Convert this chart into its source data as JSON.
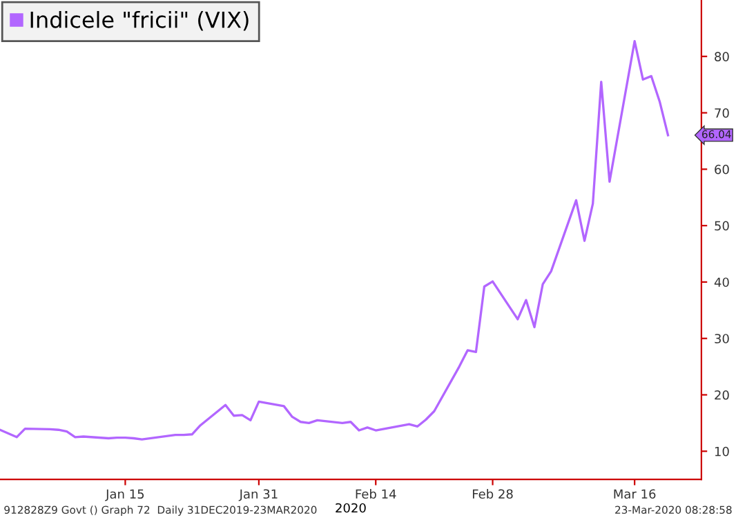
{
  "chart_data": {
    "type": "line",
    "xlabel": "2020",
    "x": [
      "2019-12-31",
      "2020-01-02",
      "2020-01-03",
      "2020-01-06",
      "2020-01-07",
      "2020-01-08",
      "2020-01-09",
      "2020-01-10",
      "2020-01-13",
      "2020-01-14",
      "2020-01-15",
      "2020-01-16",
      "2020-01-17",
      "2020-01-21",
      "2020-01-22",
      "2020-01-23",
      "2020-01-24",
      "2020-01-27",
      "2020-01-28",
      "2020-01-29",
      "2020-01-30",
      "2020-01-31",
      "2020-02-03",
      "2020-02-04",
      "2020-02-05",
      "2020-02-06",
      "2020-02-07",
      "2020-02-10",
      "2020-02-11",
      "2020-02-12",
      "2020-02-13",
      "2020-02-14",
      "2020-02-18",
      "2020-02-19",
      "2020-02-20",
      "2020-02-21",
      "2020-02-24",
      "2020-02-25",
      "2020-02-26",
      "2020-02-27",
      "2020-02-28",
      "2020-03-02",
      "2020-03-03",
      "2020-03-04",
      "2020-03-05",
      "2020-03-06",
      "2020-03-09",
      "2020-03-10",
      "2020-03-11",
      "2020-03-12",
      "2020-03-13",
      "2020-03-16",
      "2020-03-17",
      "2020-03-18",
      "2020-03-19",
      "2020-03-20"
    ],
    "series": [
      {
        "name": "Indicele \"fricii\" (VIX)",
        "color": "#b266ff",
        "values": [
          13.8,
          12.5,
          14.0,
          13.9,
          13.8,
          13.5,
          12.5,
          12.6,
          12.3,
          12.4,
          12.4,
          12.3,
          12.1,
          12.9,
          12.9,
          13.0,
          14.6,
          18.2,
          16.3,
          16.4,
          15.5,
          18.8,
          18.0,
          16.1,
          15.2,
          15.0,
          15.5,
          15.0,
          15.2,
          13.7,
          14.2,
          13.7,
          14.8,
          14.4,
          15.6,
          17.1,
          25.0,
          27.9,
          27.6,
          39.2,
          40.1,
          33.4,
          36.8,
          32.0,
          39.6,
          41.9,
          54.5,
          47.3,
          53.9,
          75.5,
          57.8,
          82.7,
          75.9,
          76.5,
          72.0,
          66.04
        ]
      }
    ],
    "xlim": [
      "2019-12-31",
      "2020-03-24"
    ],
    "xticks": [
      {
        "value": "2020-01-15",
        "label": "Jan 15"
      },
      {
        "value": "2020-01-31",
        "label": "Jan 31"
      },
      {
        "value": "2020-02-14",
        "label": "Feb 14"
      },
      {
        "value": "2020-02-28",
        "label": "Feb 28"
      },
      {
        "value": "2020-03-16",
        "label": "Mar 16"
      }
    ],
    "ylim": [
      5,
      90
    ],
    "yticks": [
      10,
      20,
      30,
      40,
      50,
      60,
      70,
      80
    ],
    "grid": false,
    "legend": "top left",
    "line_style": "solid",
    "annotations": [
      "66.04",
      "912828Z9 Govt () Graph 72  Daily 31DEC2019-23MAR2020",
      "23-Mar-2020 08:28:58"
    ]
  }
}
